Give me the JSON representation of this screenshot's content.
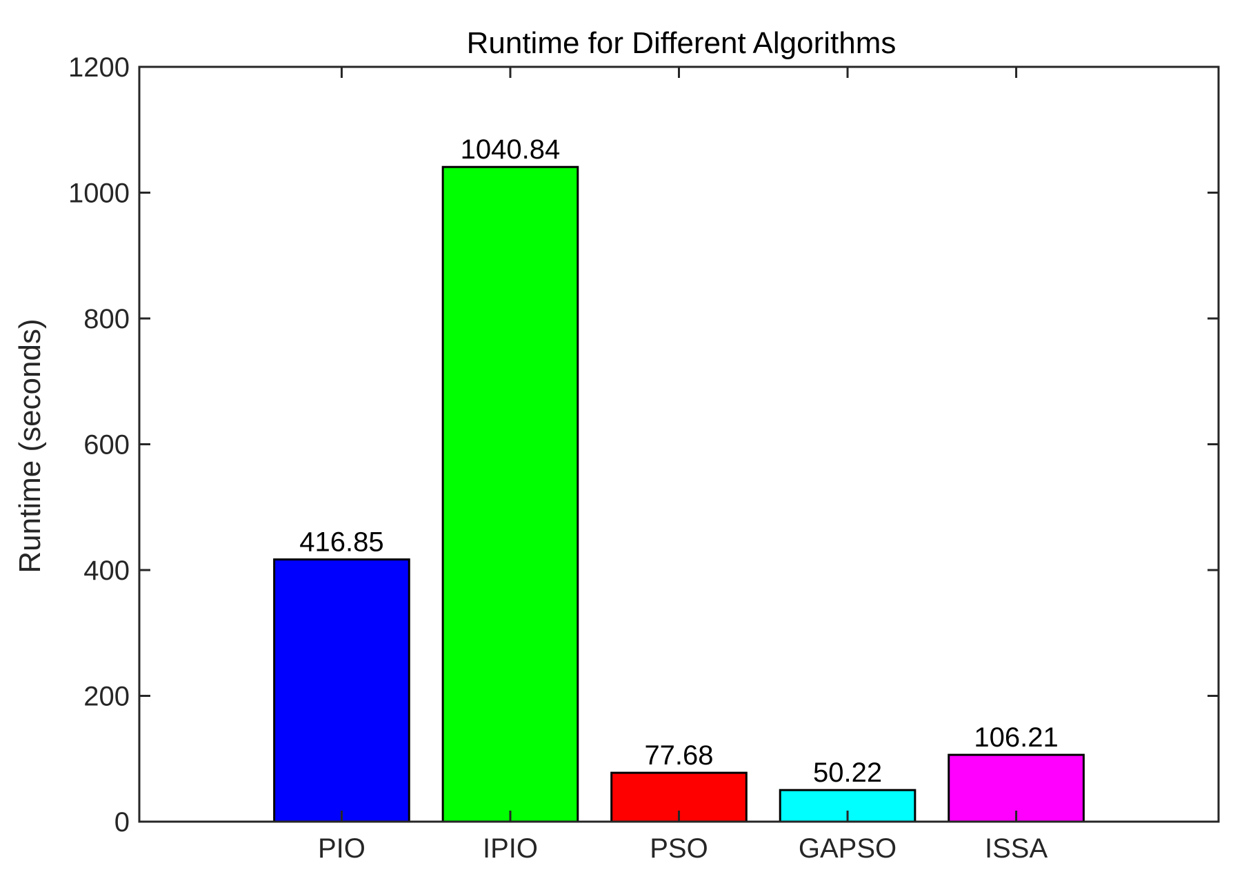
{
  "chart_data": {
    "type": "bar",
    "title": "Runtime for Different Algorithms",
    "xlabel": "",
    "ylabel": "Runtime (seconds)",
    "categories": [
      "PIO",
      "IPIO",
      "PSO",
      "GAPSO",
      "ISSA"
    ],
    "values": [
      416.85,
      1040.84,
      77.68,
      50.22,
      106.21
    ],
    "data_labels": [
      "416.85",
      "1040.84",
      "77.68",
      "50.22",
      "106.21"
    ],
    "bar_colors": [
      "#0000ff",
      "#00ff00",
      "#ff0000",
      "#00ffff",
      "#ff00ff"
    ],
    "ylim": [
      0,
      1200
    ],
    "yticks": [
      0,
      200,
      400,
      600,
      800,
      1000,
      1200
    ],
    "ytick_labels": [
      "0",
      "200",
      "400",
      "600",
      "800",
      "1000",
      "1200"
    ],
    "xlim": [
      -0.2,
      6.2
    ],
    "grid": false,
    "legend": "none"
  }
}
